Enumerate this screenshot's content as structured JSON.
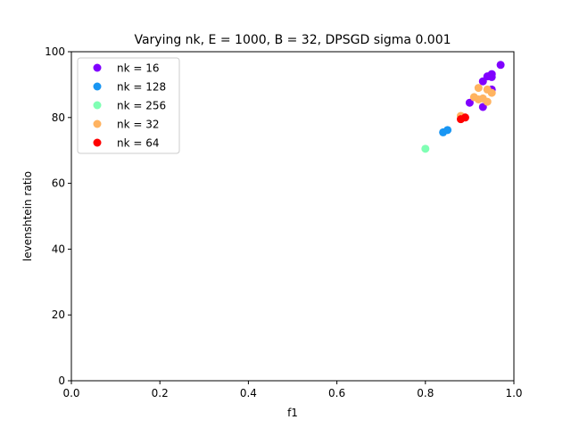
{
  "chart_data": {
    "type": "scatter",
    "title": "Varying nk, E = 1000, B = 32, DPSGD sigma 0.001",
    "xlabel": "f1",
    "ylabel": "levenshtein ratio",
    "xlim": [
      0.0,
      1.0
    ],
    "ylim": [
      0,
      100
    ],
    "xticks": [
      "0.0",
      "0.2",
      "0.4",
      "0.6",
      "0.8",
      "1.0"
    ],
    "yticks": [
      "0",
      "20",
      "40",
      "60",
      "80",
      "100"
    ],
    "grid": false,
    "legend_position": "upper-left",
    "series": [
      {
        "name": "nk = 16",
        "color": "#8000ff",
        "points": [
          [
            0.97,
            96.0
          ],
          [
            0.95,
            93.2
          ],
          [
            0.94,
            92.5
          ],
          [
            0.93,
            91.0
          ],
          [
            0.95,
            92.3
          ],
          [
            0.95,
            88.5
          ],
          [
            0.9,
            84.5
          ],
          [
            0.93,
            83.2
          ]
        ]
      },
      {
        "name": "nk = 128",
        "color": "#1996f3",
        "points": [
          [
            0.84,
            75.5
          ],
          [
            0.85,
            76.2
          ]
        ]
      },
      {
        "name": "nk = 256",
        "color": "#80ffb4",
        "points": [
          [
            0.8,
            70.5
          ]
        ]
      },
      {
        "name": "nk = 32",
        "color": "#ffb360",
        "points": [
          [
            0.92,
            89.0
          ],
          [
            0.94,
            88.5
          ],
          [
            0.95,
            87.5
          ],
          [
            0.91,
            86.2
          ],
          [
            0.93,
            85.8
          ],
          [
            0.92,
            85.5
          ],
          [
            0.94,
            84.8
          ],
          [
            0.88,
            80.5
          ]
        ]
      },
      {
        "name": "nk = 64",
        "color": "#ff0000",
        "points": [
          [
            0.89,
            80.0
          ],
          [
            0.88,
            79.5
          ]
        ]
      }
    ]
  }
}
